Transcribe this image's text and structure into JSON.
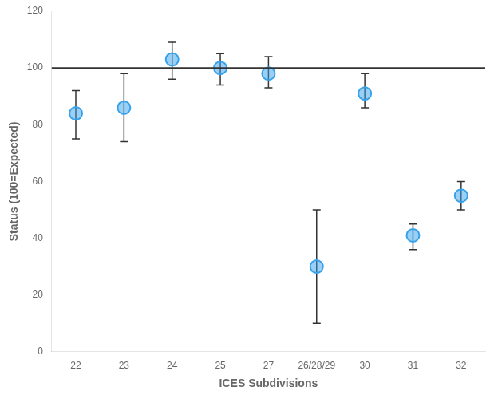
{
  "chart_data": {
    "type": "scatter",
    "xlabel": "ICES Subdivisions",
    "ylabel": "Status (100=Expected)",
    "categories": [
      "22",
      "23",
      "24",
      "25",
      "27",
      "26/28/29",
      "30",
      "31",
      "32"
    ],
    "values": [
      84,
      86,
      103,
      100,
      98,
      30,
      91,
      41,
      55
    ],
    "error_upper": [
      8,
      12,
      6,
      5,
      6,
      20,
      7,
      4,
      5
    ],
    "error_lower": [
      9,
      12,
      7,
      6,
      5,
      20,
      5,
      5,
      5
    ],
    "reference_line": 100,
    "ylim": [
      0,
      120
    ],
    "yticks": [
      0,
      20,
      40,
      60,
      80,
      100,
      120
    ],
    "grid": false
  }
}
